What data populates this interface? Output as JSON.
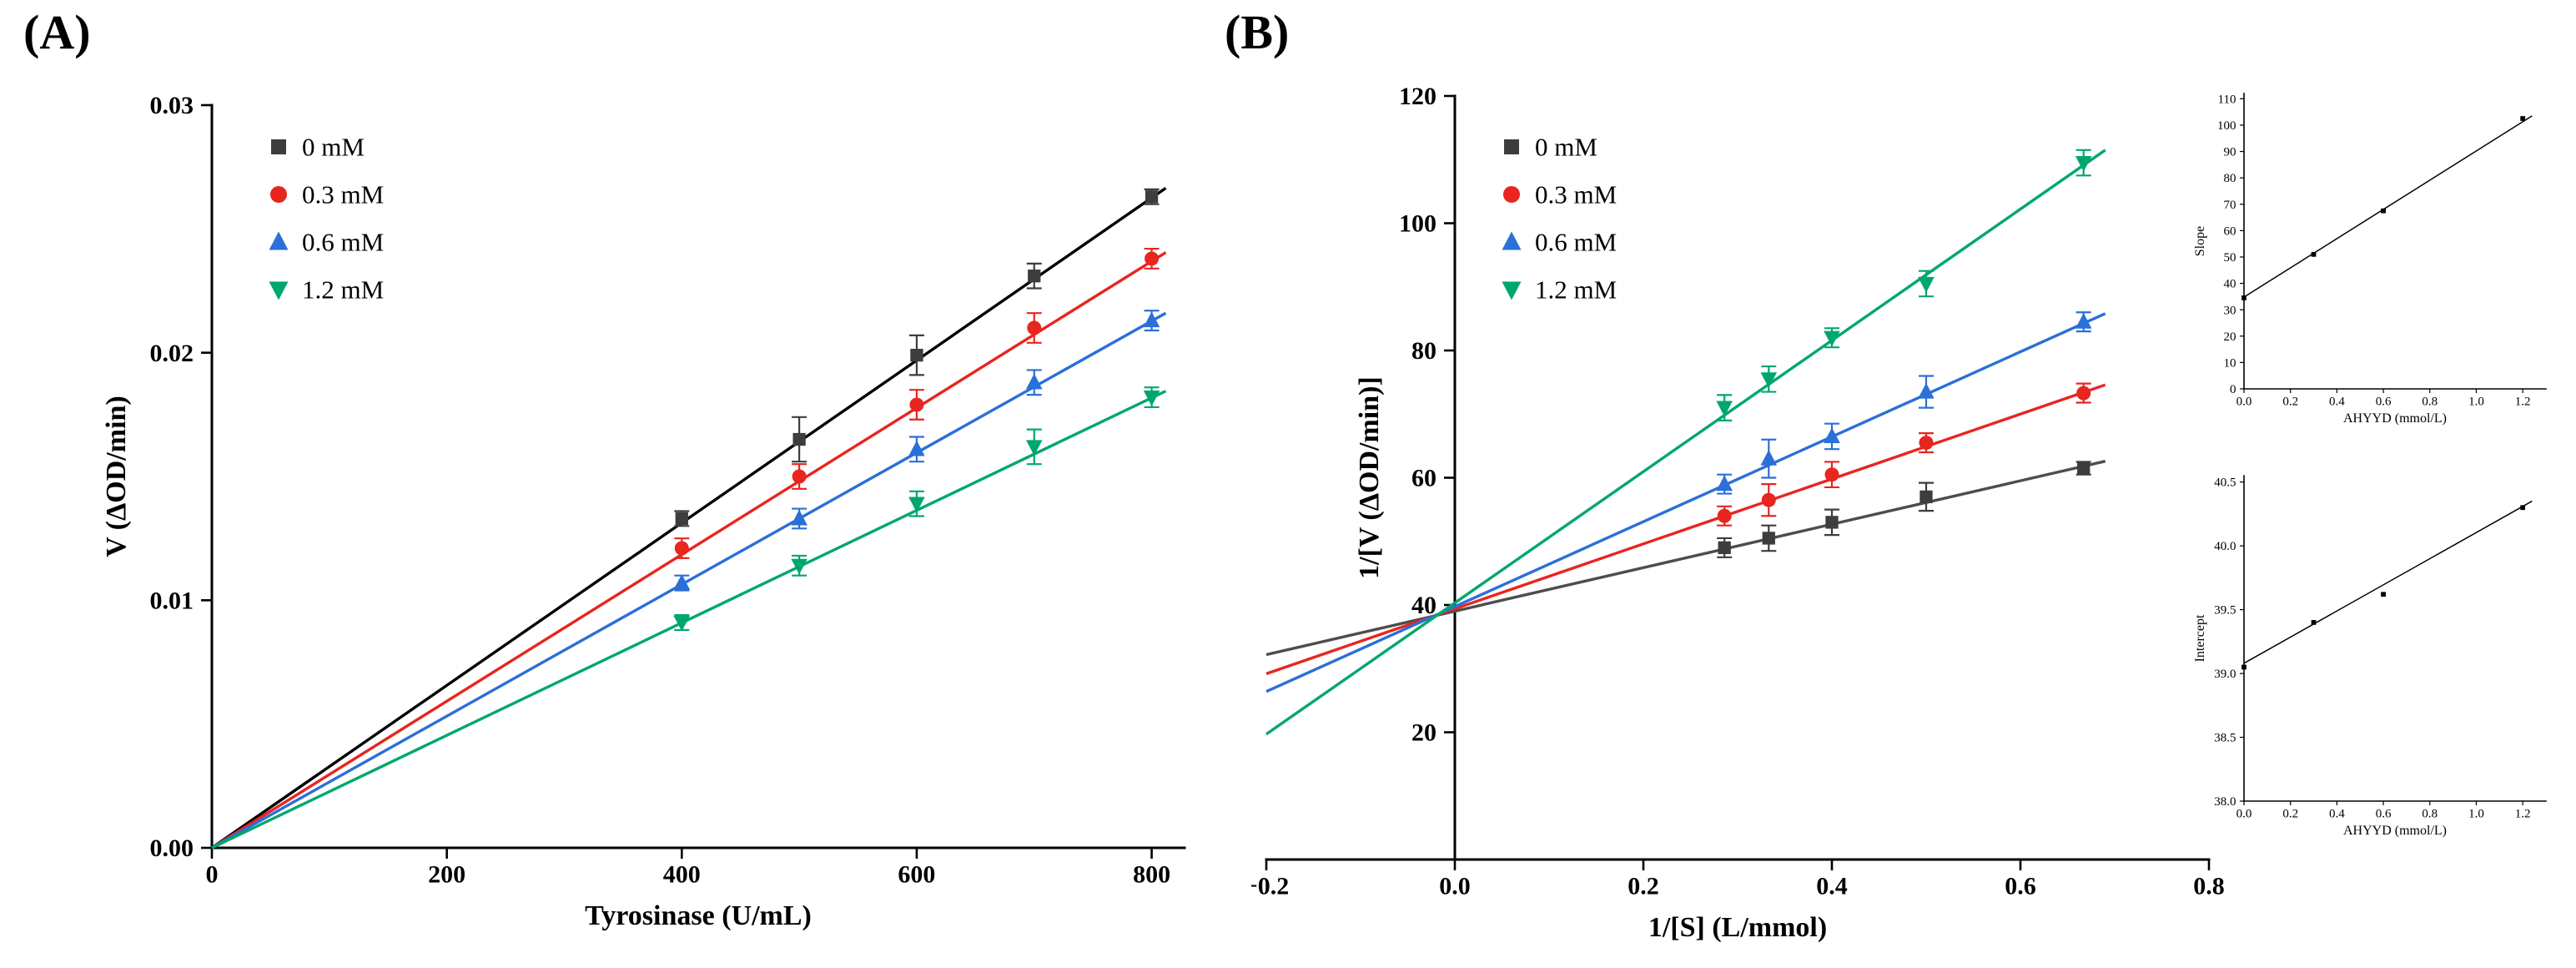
{
  "figure": {
    "background": "#ffffff",
    "panel_a_label": "(A)",
    "panel_b_label": "(B)"
  },
  "chart_data": [
    {
      "id": "panel-a",
      "panel_label": "(A)",
      "type": "scatter",
      "title": "",
      "xlabel": "Tyrosinase (U/mL)",
      "ylabel": "V (ΔOD/min)",
      "xlim": [
        0,
        828
      ],
      "ylim": [
        0,
        0.03
      ],
      "xticks": [
        0,
        200,
        400,
        600,
        800
      ],
      "xtick_labels": [
        "0",
        "200",
        "400",
        "600",
        "800"
      ],
      "yticks": [
        0,
        0.01,
        0.02,
        0.03
      ],
      "ytick_labels": [
        "0.00",
        "0.01",
        "0.02",
        "0.03"
      ],
      "legend_position": "top-left-inside",
      "grid": false,
      "series": [
        {
          "name": "0 mM",
          "marker": "square",
          "marker_color": "#3d3d3d",
          "line_color": "#000000",
          "x": [
            400,
            500,
            600,
            700,
            800
          ],
          "y": [
            0.0133,
            0.0165,
            0.0199,
            0.0231,
            0.0263
          ],
          "yerr": [
            0.0003,
            0.0009,
            0.0008,
            0.0005,
            0.0003
          ],
          "fit_line": {
            "x": [
              0,
              812
            ],
            "y": [
              0,
              0.02665
            ]
          }
        },
        {
          "name": "0.3 mM",
          "marker": "circle",
          "marker_color": "#e8251f",
          "line_color": "#e8251f",
          "x": [
            400,
            500,
            600,
            700,
            800
          ],
          "y": [
            0.0121,
            0.015,
            0.0179,
            0.021,
            0.0238
          ],
          "yerr": [
            0.0004,
            0.0005,
            0.0006,
            0.0006,
            0.0004
          ],
          "fit_line": {
            "x": [
              0,
              812
            ],
            "y": [
              0,
              0.02405
            ]
          }
        },
        {
          "name": "0.6 mM",
          "marker": "triangle-up",
          "marker_color": "#2b6fd8",
          "line_color": "#2b6fd8",
          "x": [
            400,
            500,
            600,
            700,
            800
          ],
          "y": [
            0.0107,
            0.0133,
            0.0161,
            0.0188,
            0.0213
          ],
          "yerr": [
            0.0003,
            0.0004,
            0.0005,
            0.0005,
            0.0004
          ],
          "fit_line": {
            "x": [
              0,
              812
            ],
            "y": [
              0,
              0.0216
            ]
          }
        },
        {
          "name": "1.2 mM",
          "marker": "triangle-down",
          "marker_color": "#00a76d",
          "line_color": "#00a76d",
          "x": [
            400,
            500,
            600,
            700,
            800
          ],
          "y": [
            0.0091,
            0.0114,
            0.0139,
            0.0162,
            0.0182
          ],
          "yerr": [
            0.0003,
            0.0004,
            0.0005,
            0.0007,
            0.0004
          ],
          "fit_line": {
            "x": [
              0,
              812
            ],
            "y": [
              0,
              0.01845
            ]
          }
        }
      ]
    },
    {
      "id": "panel-b",
      "panel_label": "(B)",
      "type": "scatter",
      "title": "",
      "xlabel": "1/[S] (L/mmol)",
      "ylabel": "1/[V (ΔOD/min)]",
      "xlim": [
        -0.2,
        0.8
      ],
      "ylim": [
        0,
        120
      ],
      "y_axis_at": 0,
      "xticks": [
        -0.2,
        0,
        0.2,
        0.4,
        0.6,
        0.8
      ],
      "xtick_labels": [
        "−0.2",
        "0.0",
        "0.2",
        "0.4",
        "0.6",
        "0.8"
      ],
      "yticks": [
        20,
        40,
        60,
        80,
        100,
        120
      ],
      "ytick_labels": [
        "20",
        "40",
        "60",
        "80",
        "100",
        "120"
      ],
      "legend_position": "top-left-inside",
      "grid": false,
      "series": [
        {
          "name": "0 mM",
          "marker": "square",
          "marker_color": "#3d3d3d",
          "line_color": "#4d4d4d",
          "x": [
            0.286,
            0.333,
            0.4,
            0.5,
            0.667
          ],
          "y": [
            49,
            50.5,
            53,
            57,
            61.5
          ],
          "yerr": [
            1.5,
            2,
            2,
            2.2,
            1
          ],
          "fit_line": {
            "x": [
              -0.2,
              0.69
            ],
            "y": [
              32.2,
              62.6
            ]
          }
        },
        {
          "name": "0.3 mM",
          "marker": "circle",
          "marker_color": "#e8251f",
          "line_color": "#e8251f",
          "x": [
            0.286,
            0.333,
            0.4,
            0.5,
            0.667
          ],
          "y": [
            54,
            56.5,
            60.5,
            65.5,
            73.3
          ],
          "yerr": [
            1.5,
            2.5,
            2,
            1.5,
            1.5
          ],
          "fit_line": {
            "x": [
              -0.2,
              0.69
            ],
            "y": [
              29.2,
              74.6
            ]
          }
        },
        {
          "name": "0.6 mM",
          "marker": "triangle-up",
          "marker_color": "#2b6fd8",
          "line_color": "#2b6fd8",
          "x": [
            0.286,
            0.333,
            0.4,
            0.5,
            0.667
          ],
          "y": [
            59,
            63,
            66.5,
            73.5,
            84.5
          ],
          "yerr": [
            1.5,
            3,
            2,
            2.5,
            1.5
          ],
          "fit_line": {
            "x": [
              -0.2,
              0.69
            ],
            "y": [
              26.4,
              85.8
            ]
          }
        },
        {
          "name": "1.2 mM",
          "marker": "triangle-down",
          "marker_color": "#00a76d",
          "line_color": "#00a76d",
          "x": [
            0.286,
            0.333,
            0.4,
            0.5,
            0.667
          ],
          "y": [
            71,
            75.5,
            82,
            90.5,
            109.5
          ],
          "yerr": [
            2,
            2,
            1.5,
            2,
            2
          ],
          "fit_line": {
            "x": [
              -0.2,
              0.69
            ],
            "y": [
              19.7,
              111.5
            ]
          }
        }
      ]
    },
    {
      "id": "inset-slope",
      "panel_label": "",
      "type": "scatter",
      "title": "",
      "xlabel": "AHYYD (mmol/L)",
      "ylabel": "Slope",
      "xlim": [
        0,
        1.3
      ],
      "ylim": [
        0,
        112
      ],
      "xticks": [
        0,
        0.2,
        0.4,
        0.6,
        0.8,
        1,
        1.2
      ],
      "xtick_labels": [
        "0.0",
        "0.2",
        "0.4",
        "0.6",
        "0.8",
        "1.0",
        "1.2"
      ],
      "yticks": [
        0,
        10,
        20,
        30,
        40,
        50,
        60,
        70,
        80,
        90,
        100,
        110
      ],
      "ytick_labels": [
        "0",
        "10",
        "20",
        "30",
        "40",
        "50",
        "60",
        "70",
        "80",
        "90",
        "100",
        "110"
      ],
      "grid": false,
      "series": [
        {
          "name": "Slope",
          "marker": "square",
          "marker_color": "#000000",
          "line_color": "#000000",
          "x": [
            0,
            0.3,
            0.6,
            1.2
          ],
          "y": [
            34.5,
            51,
            67.5,
            102.5
          ],
          "yerr": [
            0,
            0,
            0,
            0
          ],
          "fit_line": {
            "x": [
              0,
              1.24
            ],
            "y": [
              34.8,
              103.5
            ]
          }
        }
      ]
    },
    {
      "id": "inset-intercept",
      "panel_label": "",
      "type": "scatter",
      "title": "",
      "xlabel": "AHYYD (mmol/L)",
      "ylabel": "Intercept",
      "xlim": [
        0,
        1.3
      ],
      "ylim": [
        38,
        40.55
      ],
      "xticks": [
        0,
        0.2,
        0.4,
        0.6,
        0.8,
        1,
        1.2
      ],
      "xtick_labels": [
        "0.0",
        "0.2",
        "0.4",
        "0.6",
        "0.8",
        "1.0",
        "1.2"
      ],
      "yticks": [
        38,
        38.5,
        39,
        39.5,
        40,
        40.5
      ],
      "ytick_labels": [
        "38.0",
        "38.5",
        "39.0",
        "39.5",
        "40.0",
        "40.5"
      ],
      "grid": false,
      "series": [
        {
          "name": "Intercept",
          "marker": "square",
          "marker_color": "#000000",
          "line_color": "#000000",
          "x": [
            0,
            0.3,
            0.6,
            1.2
          ],
          "y": [
            39.05,
            39.4,
            39.62,
            40.3
          ],
          "yerr": [
            0,
            0,
            0,
            0
          ],
          "fit_line": {
            "x": [
              0,
              1.24
            ],
            "y": [
              39.08,
              40.35
            ]
          }
        }
      ]
    }
  ]
}
